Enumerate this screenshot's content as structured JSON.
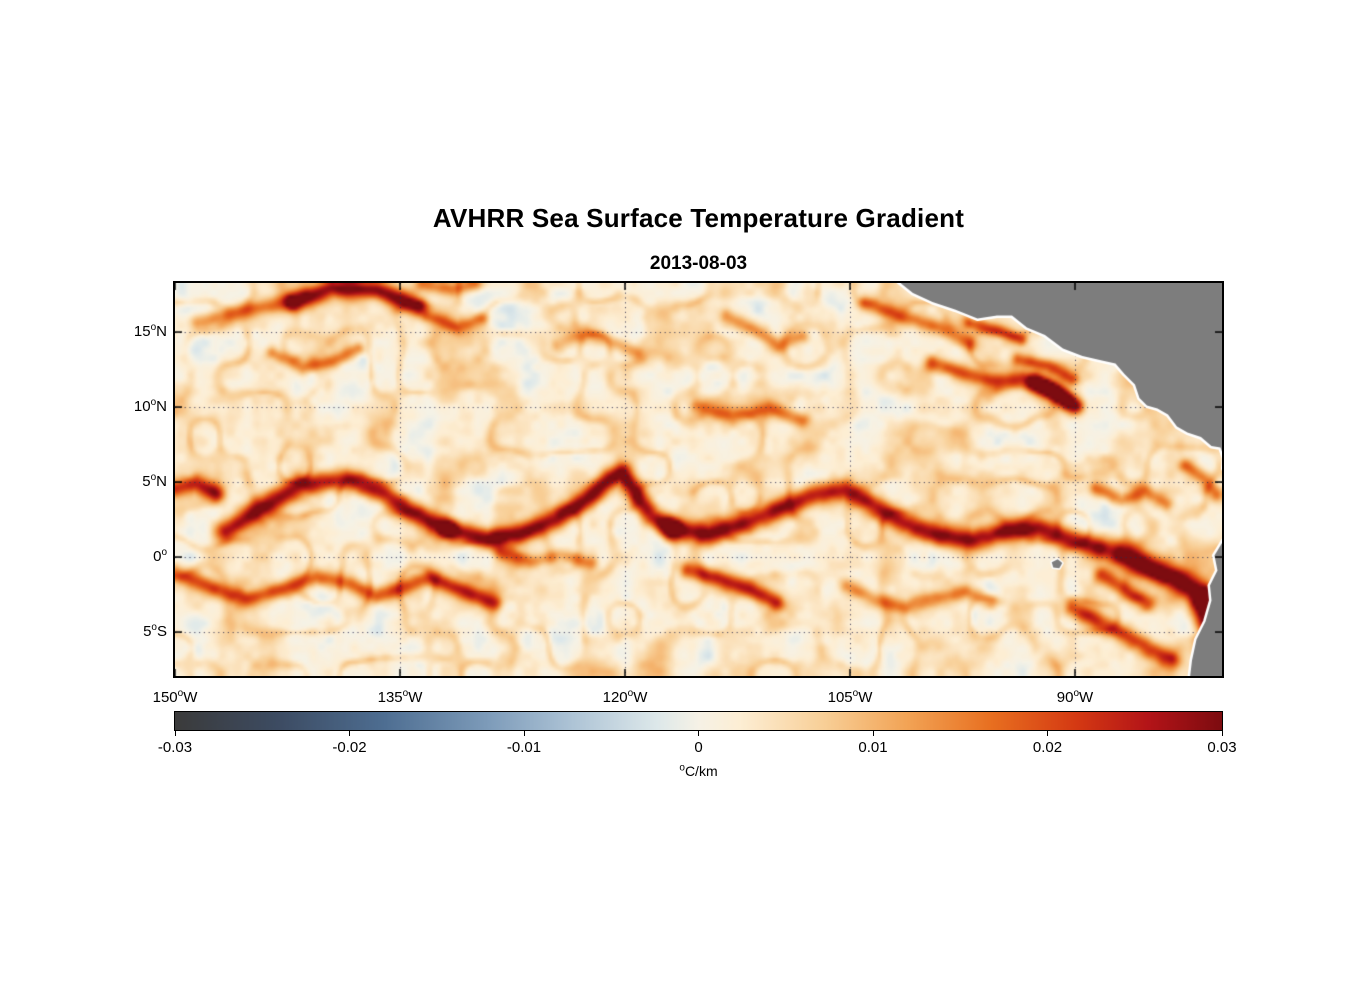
{
  "chart_data": {
    "type": "heatmap",
    "title": "AVHRR Sea Surface Temperature Gradient",
    "subtitle": "2013-08-03",
    "units": "°C/km",
    "lon_range": [
      -150.0,
      -80.2
    ],
    "lat_range": [
      -7.93,
      18.27
    ],
    "value_range": [
      -0.03,
      0.03
    ],
    "base_value": 0.0015,
    "x_ticks": [
      {
        "text": "150",
        "sup": "o",
        "suffix": "W",
        "lon": -150
      },
      {
        "text": "135",
        "sup": "o",
        "suffix": "W",
        "lon": -135
      },
      {
        "text": "120",
        "sup": "o",
        "suffix": "W",
        "lon": -120
      },
      {
        "text": "105",
        "sup": "o",
        "suffix": "W",
        "lon": -105
      },
      {
        "text": "90",
        "sup": "o",
        "suffix": "W",
        "lon": -90
      }
    ],
    "y_ticks": [
      {
        "text": "15",
        "sup": "o",
        "suffix": "N",
        "lat": 15
      },
      {
        "text": "10",
        "sup": "o",
        "suffix": "N",
        "lat": 10
      },
      {
        "text": "5",
        "sup": "o",
        "suffix": "N",
        "lat": 5
      },
      {
        "text": "0",
        "sup": "o",
        "suffix": "",
        "lat": 0
      },
      {
        "text": "5",
        "sup": "o",
        "suffix": "S",
        "lat": -5
      }
    ],
    "grid": {
      "color": "rgba(45,45,80,0.85)",
      "dash": [
        1.2,
        3.6
      ]
    },
    "frame_color": "#000000",
    "colorbar": {
      "tick_labels": [
        "-0.03",
        "-0.02",
        "-0.01",
        "0",
        "0.01",
        "0.02",
        "0.03"
      ],
      "tick_values": [
        -0.03,
        -0.02,
        -0.01,
        0,
        0.01,
        0.02,
        0.03
      ],
      "unit_sup": "o",
      "unit_text": "C/km"
    },
    "colormap_stops": [
      [
        0.0,
        "#3b3b3b"
      ],
      [
        0.1,
        "#3d4c63"
      ],
      [
        0.2,
        "#4e6e92"
      ],
      [
        0.3,
        "#7e9cba"
      ],
      [
        0.38,
        "#aec4d6"
      ],
      [
        0.46,
        "#dde8ea"
      ],
      [
        0.5,
        "#f6f2e6"
      ],
      [
        0.54,
        "#fdeed4"
      ],
      [
        0.62,
        "#f8cf97"
      ],
      [
        0.7,
        "#f2a355"
      ],
      [
        0.78,
        "#e86f20"
      ],
      [
        0.86,
        "#d53a13"
      ],
      [
        0.93,
        "#b31418"
      ],
      [
        1.0,
        "#7d0c10"
      ]
    ],
    "noise": {
      "octaves": [
        {
          "scale": 2.4,
          "amp": 0.003,
          "seed": 11
        },
        {
          "scale": 1.1,
          "amp": 0.0022,
          "seed": 23
        },
        {
          "scale": 0.55,
          "amp": 0.0015,
          "seed": 37
        }
      ],
      "filament": {
        "scale": 2.0,
        "amp": 0.005,
        "seed": 53,
        "sharp": 0.13
      }
    },
    "fronts": [
      {
        "name": "nw-band-west",
        "amp": 0.014,
        "width": 0.55,
        "points": [
          [
            -148.5,
            15.6
          ],
          [
            -145.5,
            16.4
          ],
          [
            -142.5,
            17.0
          ]
        ]
      },
      {
        "name": "nw-red-arc",
        "amp": 0.027,
        "width": 0.6,
        "points": [
          [
            -142.0,
            17.0
          ],
          [
            -139.5,
            17.9
          ],
          [
            -136.5,
            17.8
          ],
          [
            -133.8,
            16.7
          ]
        ]
      },
      {
        "name": "nw-squiggle",
        "amp": 0.013,
        "width": 0.45,
        "points": [
          [
            -143.5,
            13.6
          ],
          [
            -141.5,
            12.6
          ],
          [
            -139.5,
            13.0
          ],
          [
            -137.8,
            13.9
          ]
        ]
      },
      {
        "name": "n-top-patch",
        "amp": 0.013,
        "width": 0.5,
        "points": [
          [
            -133.5,
            18.2
          ],
          [
            -131.5,
            17.8
          ],
          [
            -130.0,
            18.2
          ]
        ]
      },
      {
        "name": "n-mid-patch",
        "amp": 0.012,
        "width": 0.45,
        "points": [
          [
            -133.2,
            16.1
          ],
          [
            -131.2,
            15.3
          ],
          [
            -129.6,
            15.9
          ]
        ]
      },
      {
        "name": "n-mid2",
        "amp": 0.011,
        "width": 0.5,
        "points": [
          [
            -124.5,
            14.2
          ],
          [
            -122.5,
            14.9
          ],
          [
            -120.8,
            14.3
          ],
          [
            -119.2,
            13.6
          ]
        ]
      },
      {
        "name": "n-110-patch",
        "amp": 0.013,
        "width": 0.5,
        "points": [
          [
            -113.2,
            16.0
          ],
          [
            -111.3,
            15.1
          ],
          [
            -109.8,
            14.1
          ],
          [
            -108.2,
            14.7
          ]
        ]
      },
      {
        "name": "mex-offshore",
        "amp": 0.013,
        "width": 0.5,
        "points": [
          [
            -104.0,
            16.9
          ],
          [
            -101.5,
            16.0
          ],
          [
            -99.0,
            15.3
          ],
          [
            -97.0,
            14.2
          ]
        ]
      },
      {
        "name": "tehuantepec",
        "amp": 0.015,
        "width": 0.4,
        "points": [
          [
            -97.0,
            15.6
          ],
          [
            -95.0,
            15.1
          ],
          [
            -93.6,
            14.5
          ]
        ]
      },
      {
        "name": "ca-jet-band",
        "amp": 0.019,
        "width": 0.55,
        "points": [
          [
            -99.5,
            12.9
          ],
          [
            -97.3,
            12.2
          ],
          [
            -95.2,
            11.7
          ],
          [
            -93.5,
            11.9
          ],
          [
            -92.0,
            11.3
          ],
          [
            -90.6,
            10.4
          ]
        ]
      },
      {
        "name": "ca-red-blob",
        "amp": 0.027,
        "width": 0.55,
        "points": [
          [
            -92.6,
            11.7
          ],
          [
            -91.2,
            11.0
          ],
          [
            -90.0,
            10.1
          ]
        ]
      },
      {
        "name": "ca-arc-north",
        "amp": 0.015,
        "width": 0.45,
        "points": [
          [
            -93.8,
            13.2
          ],
          [
            -91.8,
            12.7
          ],
          [
            -90.2,
            11.9
          ]
        ]
      },
      {
        "name": "front-west-edge",
        "amp": 0.021,
        "width": 0.6,
        "points": [
          [
            -150.2,
            4.5
          ],
          [
            -148.6,
            4.9
          ],
          [
            -147.2,
            4.2
          ]
        ]
      },
      {
        "name": "front-big-cusp",
        "amp": 0.026,
        "width": 0.7,
        "points": [
          [
            -146.6,
            1.7
          ],
          [
            -144.2,
            3.3
          ],
          [
            -141.6,
            4.8
          ],
          [
            -138.6,
            5.2
          ],
          [
            -136.1,
            4.3
          ],
          [
            -134.1,
            2.9
          ],
          [
            -131.9,
            1.9
          ]
        ]
      },
      {
        "name": "front-mid-cusp",
        "amp": 0.027,
        "width": 0.65,
        "points": [
          [
            -131.9,
            1.9
          ],
          [
            -129.2,
            1.2
          ],
          [
            -126.8,
            1.6
          ],
          [
            -124.6,
            2.5
          ],
          [
            -122.6,
            3.8
          ],
          [
            -121.0,
            5.2
          ],
          [
            -120.2,
            5.6
          ],
          [
            -119.2,
            4.1
          ],
          [
            -118.2,
            2.7
          ],
          [
            -116.9,
            1.9
          ]
        ]
      },
      {
        "name": "front-east",
        "amp": 0.025,
        "width": 0.7,
        "points": [
          [
            -116.9,
            1.9
          ],
          [
            -114.4,
            1.5
          ],
          [
            -111.8,
            2.3
          ],
          [
            -109.3,
            3.4
          ],
          [
            -107.2,
            4.2
          ],
          [
            -105.3,
            4.5
          ],
          [
            -103.4,
            3.4
          ],
          [
            -101.3,
            2.2
          ],
          [
            -99.0,
            1.4
          ],
          [
            -96.8,
            1.1
          ],
          [
            -94.6,
            1.7
          ],
          [
            -92.4,
            1.9
          ],
          [
            -90.4,
            1.2
          ],
          [
            -88.4,
            0.6
          ]
        ]
      },
      {
        "name": "front-far-east",
        "amp": 0.03,
        "width": 0.85,
        "points": [
          [
            -87.0,
            0.2
          ],
          [
            -85.0,
            -0.6
          ],
          [
            -83.0,
            -1.6
          ],
          [
            -81.2,
            -2.6
          ],
          [
            -80.3,
            -3.4
          ]
        ]
      },
      {
        "name": "s-band-west",
        "amp": 0.017,
        "width": 0.55,
        "points": [
          [
            -150.2,
            -1.0
          ],
          [
            -147.6,
            -2.0
          ],
          [
            -145.2,
            -2.8
          ],
          [
            -142.6,
            -2.1
          ],
          [
            -140.6,
            -1.3
          ],
          [
            -138.4,
            -1.8
          ],
          [
            -136.6,
            -2.6
          ],
          [
            -134.6,
            -2.0
          ],
          [
            -133.1,
            -1.3
          ]
        ]
      },
      {
        "name": "s-band-red",
        "amp": 0.02,
        "width": 0.55,
        "points": [
          [
            -132.4,
            -1.6
          ],
          [
            -130.4,
            -2.4
          ],
          [
            -128.7,
            -3.1
          ]
        ]
      },
      {
        "name": "s-wave-mid",
        "amp": 0.013,
        "width": 0.5,
        "points": [
          [
            -128.3,
            0.3
          ],
          [
            -126.3,
            -0.3
          ],
          [
            -124.3,
            0.1
          ],
          [
            -122.3,
            -0.4
          ]
        ]
      },
      {
        "name": "s-streak-mid",
        "amp": 0.02,
        "width": 0.55,
        "points": [
          [
            -115.8,
            -0.9
          ],
          [
            -113.6,
            -1.5
          ],
          [
            -111.6,
            -2.2
          ],
          [
            -109.9,
            -3.0
          ]
        ]
      },
      {
        "name": "s-band-east",
        "amp": 0.012,
        "width": 0.5,
        "points": [
          [
            -105.2,
            -2.0
          ],
          [
            -103.2,
            -2.9
          ],
          [
            -101.2,
            -3.4
          ],
          [
            -99.2,
            -2.8
          ],
          [
            -97.2,
            -2.3
          ],
          [
            -95.6,
            -3.0
          ]
        ]
      },
      {
        "name": "peru-arcs",
        "amp": 0.019,
        "width": 0.6,
        "points": [
          [
            -90.2,
            -3.4
          ],
          [
            -88.2,
            -4.4
          ],
          [
            -86.6,
            -5.2
          ],
          [
            -85.0,
            -6.2
          ],
          [
            -83.6,
            -6.8
          ]
        ]
      },
      {
        "name": "peru-inner",
        "amp": 0.017,
        "width": 0.55,
        "points": [
          [
            -88.2,
            -1.2
          ],
          [
            -86.6,
            -2.2
          ],
          [
            -85.2,
            -3.2
          ]
        ]
      },
      {
        "name": "coast-maroon",
        "amp": 0.03,
        "width": 0.8,
        "points": [
          [
            -81.6,
            -3.2
          ],
          [
            -81.0,
            -4.8
          ],
          [
            -80.6,
            -6.2
          ],
          [
            -80.2,
            -7.4
          ]
        ]
      },
      {
        "name": "colombia-coast",
        "amp": 0.015,
        "width": 0.5,
        "points": [
          [
            -82.6,
            6.1
          ],
          [
            -81.4,
            5.2
          ],
          [
            -80.6,
            4.2
          ]
        ]
      },
      {
        "name": "east-mid-patch",
        "amp": 0.014,
        "width": 0.5,
        "points": [
          [
            -88.6,
            4.6
          ],
          [
            -86.9,
            3.8
          ],
          [
            -85.3,
            4.4
          ],
          [
            -83.9,
            3.5
          ]
        ]
      },
      {
        "name": "n10-squiggle",
        "amp": 0.011,
        "width": 0.5,
        "points": [
          [
            -115.2,
            10.1
          ],
          [
            -112.8,
            9.3
          ],
          [
            -110.4,
            9.9
          ],
          [
            -108.2,
            9.1
          ]
        ]
      }
    ],
    "land": {
      "color": "#7d7d7d",
      "coast_halo": "#ffffff",
      "polygons": {
        "central_america": [
          [
            -102.2,
            19.5
          ],
          [
            -101.8,
            18.4
          ],
          [
            -100.8,
            17.6
          ],
          [
            -99.5,
            17.0
          ],
          [
            -98.0,
            16.5
          ],
          [
            -96.5,
            15.9
          ],
          [
            -95.2,
            16.1
          ],
          [
            -94.2,
            16.1
          ],
          [
            -93.2,
            15.3
          ],
          [
            -92.0,
            14.8
          ],
          [
            -90.8,
            13.9
          ],
          [
            -89.5,
            13.4
          ],
          [
            -88.2,
            13.1
          ],
          [
            -87.3,
            12.9
          ],
          [
            -86.7,
            12.2
          ],
          [
            -86.0,
            11.5
          ],
          [
            -85.7,
            10.6
          ],
          [
            -85.2,
            10.1
          ],
          [
            -84.5,
            9.9
          ],
          [
            -83.8,
            9.5
          ],
          [
            -83.2,
            8.7
          ],
          [
            -82.5,
            8.3
          ],
          [
            -81.6,
            8.0
          ],
          [
            -80.9,
            7.4
          ],
          [
            -80.3,
            7.3
          ],
          [
            -80.05,
            6.6
          ],
          [
            -80.1,
            5.9
          ],
          [
            -79.7,
            5.0
          ],
          [
            -78.5,
            4.5
          ],
          [
            -78.0,
            19.5
          ]
        ],
        "south_america": [
          [
            -79.3,
            1.8
          ],
          [
            -80.1,
            1.1
          ],
          [
            -80.7,
            0.1
          ],
          [
            -80.5,
            -0.9
          ],
          [
            -81.0,
            -1.9
          ],
          [
            -80.9,
            -2.9
          ],
          [
            -81.3,
            -4.3
          ],
          [
            -81.9,
            -5.5
          ],
          [
            -82.2,
            -6.9
          ],
          [
            -82.4,
            -8.6
          ],
          [
            -77.0,
            -8.6
          ],
          [
            -77.0,
            1.8
          ]
        ],
        "galapagos": [
          [
            -91.55,
            -0.35
          ],
          [
            -91.15,
            -0.15
          ],
          [
            -90.85,
            -0.4
          ],
          [
            -91.05,
            -0.75
          ],
          [
            -91.45,
            -0.7
          ]
        ]
      }
    }
  }
}
